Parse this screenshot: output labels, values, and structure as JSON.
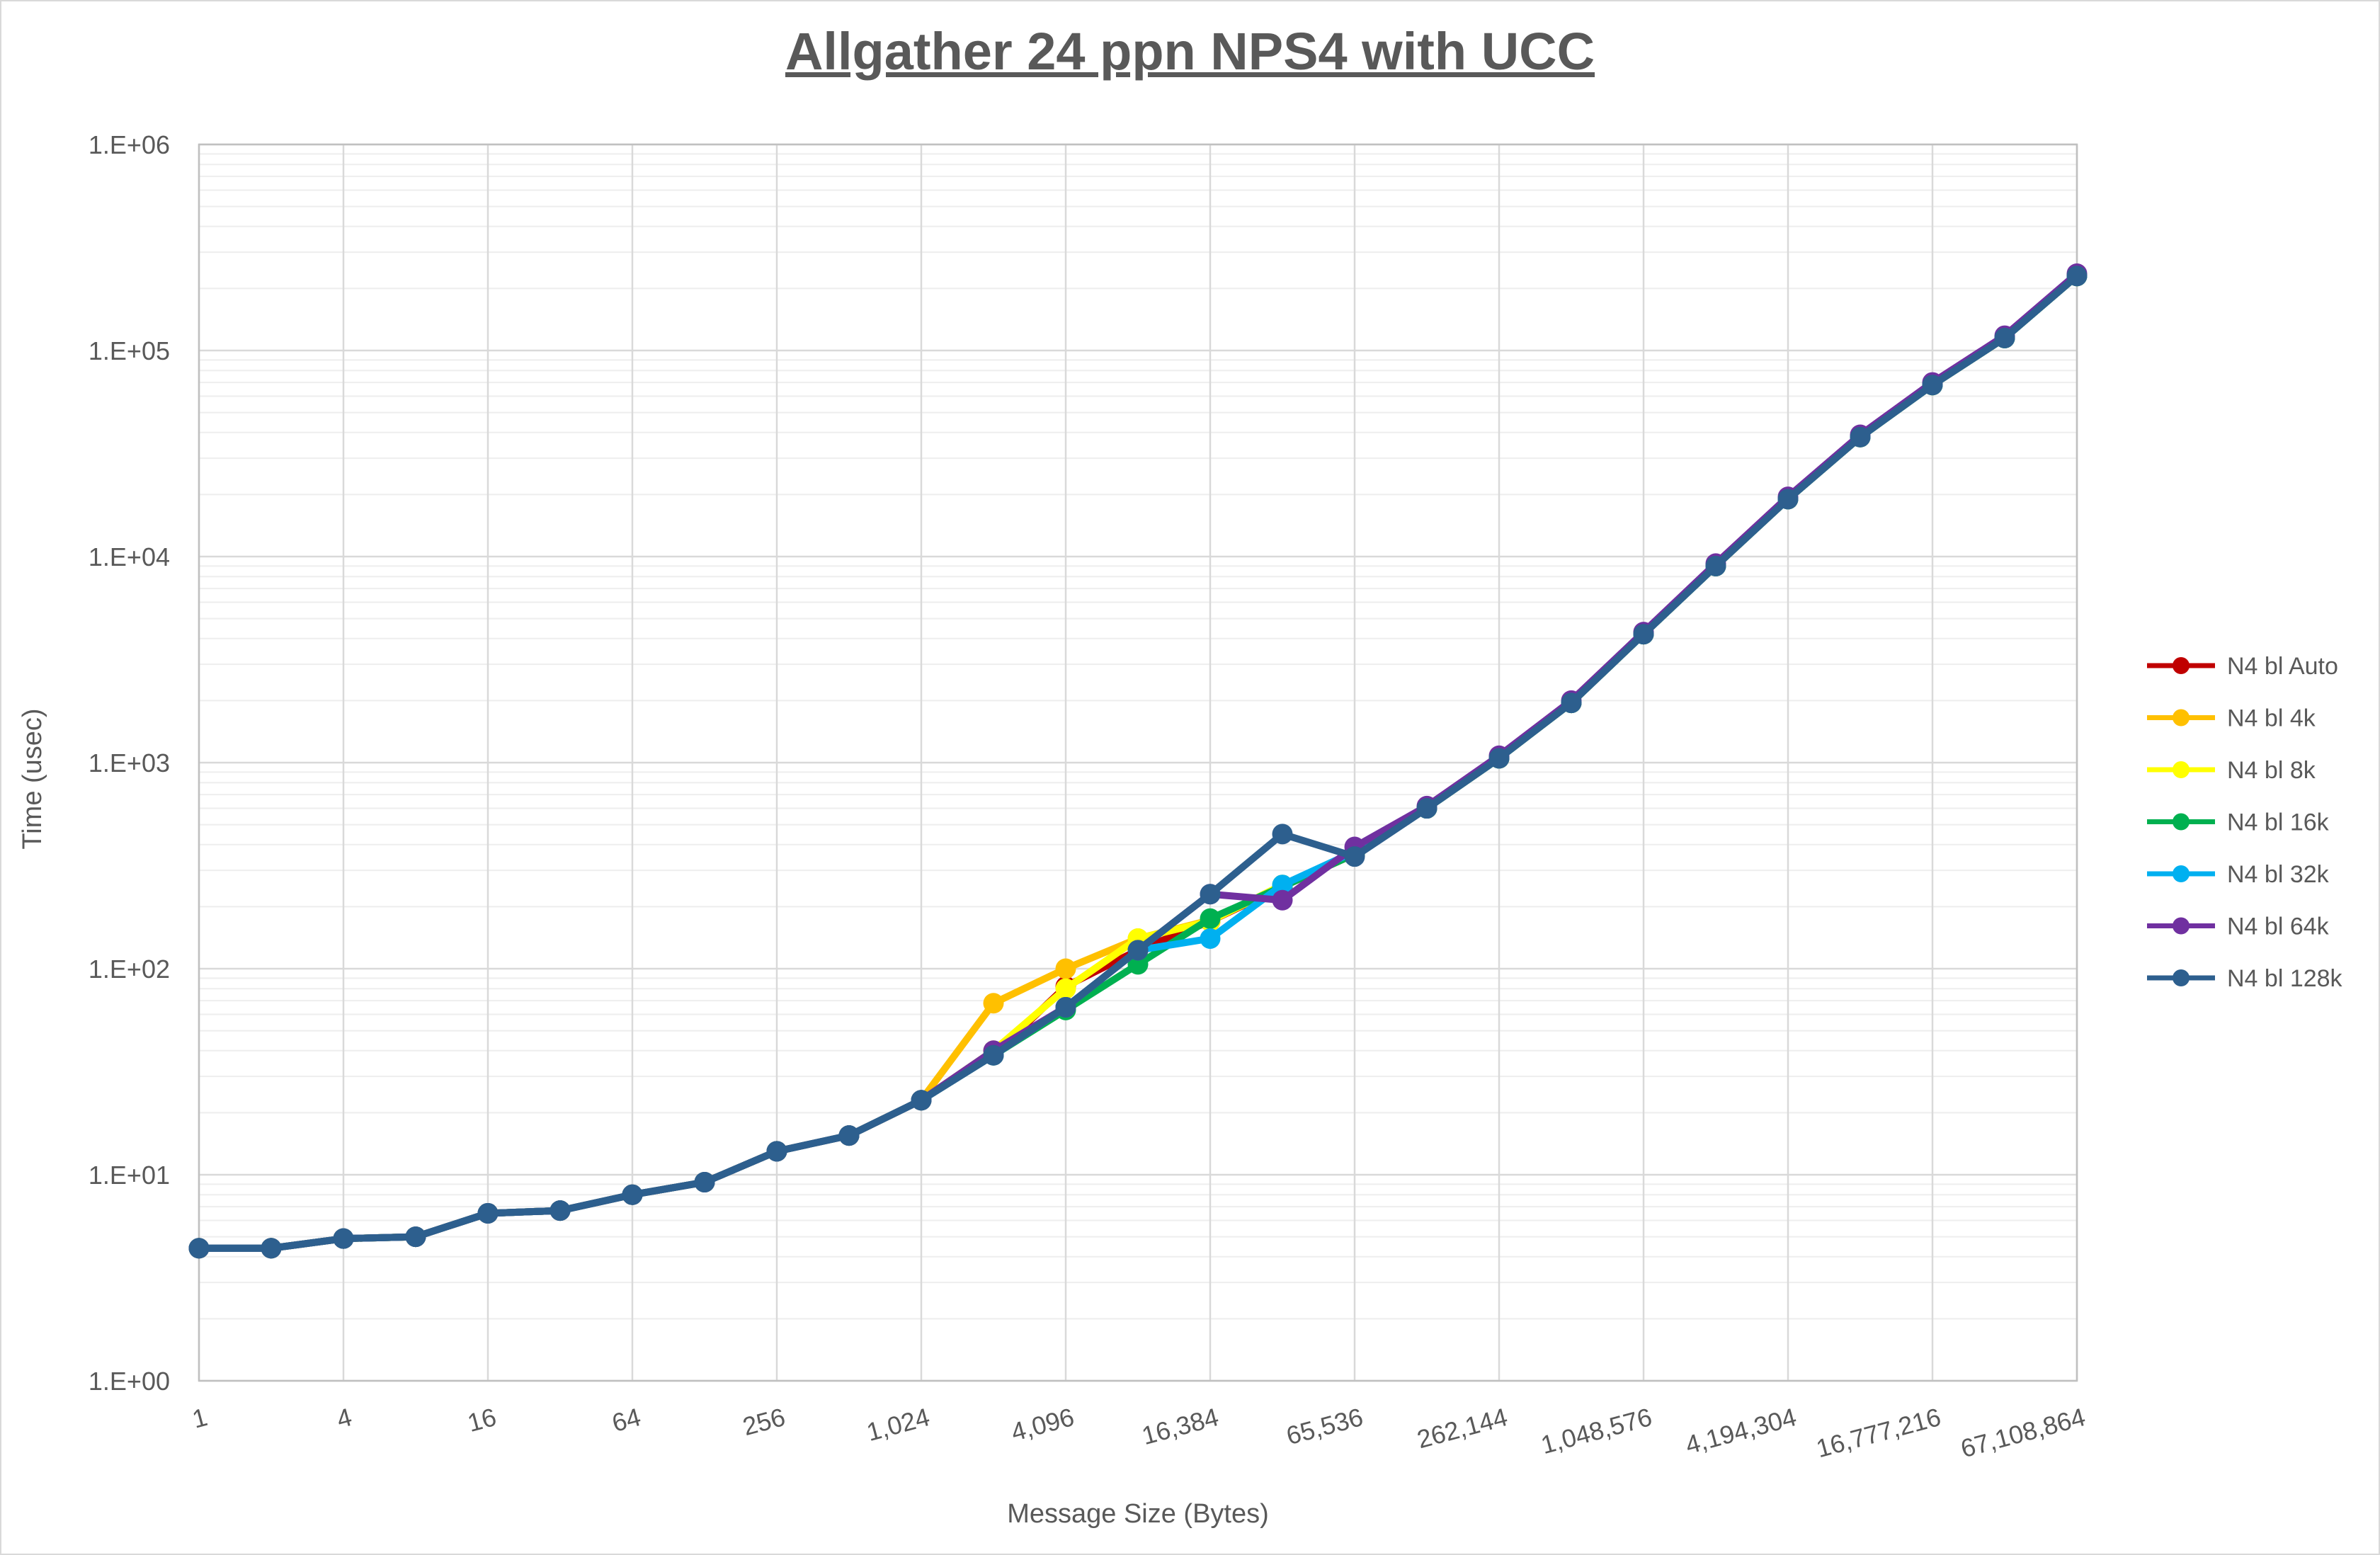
{
  "chart_data": {
    "type": "line",
    "title": "Allgather 24 ppn NPS4 with UCC",
    "xlabel": "Message Size (Bytes)",
    "ylabel": "Time (usec)",
    "x_scale": "log2",
    "y_scale": "log10",
    "xlim": [
      1,
      67108864
    ],
    "ylim": [
      1,
      1000000
    ],
    "grid": true,
    "legend_position": "right",
    "x_tick_values": [
      1,
      4,
      16,
      64,
      256,
      1024,
      4096,
      16384,
      65536,
      262144,
      1048576,
      4194304,
      16777216,
      67108864
    ],
    "x_tick_labels": [
      "1",
      "4",
      "16",
      "64",
      "256",
      "1,024",
      "4,096",
      "16,384",
      "65,536",
      "262,144",
      "1,048,576",
      "4,194,304",
      "16,777,216",
      "67,108,864"
    ],
    "y_tick_values": [
      1,
      10,
      100,
      1000,
      10000,
      100000,
      1000000
    ],
    "y_tick_labels": [
      "1.E+00",
      "1.E+01",
      "1.E+02",
      "1.E+03",
      "1.E+04",
      "1.E+05",
      "1.E+06"
    ],
    "x": [
      1,
      2,
      4,
      8,
      16,
      32,
      64,
      128,
      256,
      512,
      1024,
      2048,
      4096,
      8192,
      16384,
      32768,
      65536,
      131072,
      262144,
      524288,
      1048576,
      2097152,
      4194304,
      8388608,
      16777216,
      33554432,
      67108864
    ],
    "series": [
      {
        "name": "N4 bl Auto",
        "color": "#C00000",
        "values": [
          4.4,
          4.4,
          4.9,
          5.0,
          6.5,
          6.7,
          8.0,
          9.2,
          13,
          15.5,
          23,
          38,
          82,
          123,
          170,
          250,
          360,
          600,
          1050,
          1950,
          4200,
          9000,
          19000,
          38000,
          68000,
          115000,
          230000
        ]
      },
      {
        "name": "N4 bl 4k",
        "color": "#FFC000",
        "values": [
          4.4,
          4.4,
          4.9,
          5.0,
          6.5,
          6.7,
          8.0,
          9.2,
          13,
          15.5,
          23,
          68,
          100,
          140,
          172,
          250,
          365,
          600,
          1050,
          1950,
          4200,
          9000,
          19000,
          38000,
          68000,
          115000,
          230000
        ]
      },
      {
        "name": "N4 bl 8k",
        "color": "#FFFF00",
        "values": [
          4.4,
          4.4,
          4.9,
          5.0,
          6.5,
          6.7,
          8.0,
          9.2,
          13,
          15.5,
          23,
          40,
          80,
          140,
          170,
          255,
          365,
          600,
          1050,
          1950,
          4200,
          9000,
          19000,
          38000,
          68000,
          115000,
          230000
        ]
      },
      {
        "name": "N4 bl 16k",
        "color": "#00B050",
        "values": [
          4.4,
          4.4,
          4.9,
          5.0,
          6.5,
          6.7,
          8.0,
          9.2,
          13,
          15.5,
          23,
          38,
          63,
          105,
          175,
          250,
          360,
          600,
          1050,
          1950,
          4200,
          9000,
          19000,
          38000,
          68000,
          115000,
          230000
        ]
      },
      {
        "name": "N4 bl 32k",
        "color": "#00B0F0",
        "values": [
          4.4,
          4.4,
          4.9,
          5.0,
          6.5,
          6.7,
          8.0,
          9.2,
          13,
          15.5,
          23,
          38,
          65,
          123,
          140,
          255,
          370,
          600,
          1050,
          1950,
          4200,
          9000,
          19000,
          38000,
          68000,
          115000,
          230000
        ]
      },
      {
        "name": "N4 bl 64k",
        "color": "#7030A0",
        "values": [
          4.4,
          4.4,
          4.9,
          5.0,
          6.5,
          6.7,
          8.0,
          9.2,
          13,
          15.5,
          23,
          40,
          65,
          123,
          230,
          215,
          390,
          615,
          1080,
          2000,
          4300,
          9250,
          19500,
          39000,
          70000,
          118000,
          236000
        ]
      },
      {
        "name": "N4 bl 128k",
        "color": "#2D5F8E",
        "values": [
          4.4,
          4.4,
          4.9,
          5.0,
          6.5,
          6.7,
          8.0,
          9.2,
          13,
          15.5,
          23,
          38,
          65,
          123,
          230,
          450,
          350,
          600,
          1050,
          1950,
          4200,
          9000,
          19000,
          38000,
          68000,
          115000,
          230000
        ]
      }
    ],
    "style": {
      "text_color": "#595959",
      "grid_major_color": "#D9D9D9",
      "grid_minor_color": "#EEEEEE",
      "plot_border_color": "#C0C0C0",
      "background": "#FFFFFF"
    }
  }
}
